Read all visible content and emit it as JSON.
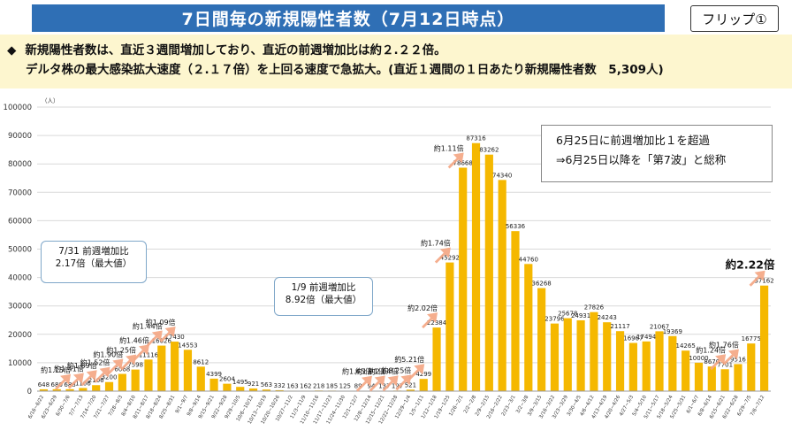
{
  "header": {
    "title": "7日間毎の新規陽性者数（7月12日時点）",
    "flip_label": "フリップ①"
  },
  "summary": {
    "bullet": "◆",
    "line1": "新規陽性者数は、直近３週間増加しており、直近の前週増加比は約２.２２倍。",
    "line2": "デルタ株の最大感染拡大速度（２.１７倍）を上回る速度で急拡大。(直近１週間の１日あたり新規陽性者数　5,309人)"
  },
  "callouts": {
    "delta": [
      "7/31 前週増加比",
      "2.17倍（最大値）"
    ],
    "omicron": [
      "1/9  前週増加比",
      "8.92倍（最大値）"
    ],
    "wave7": [
      "6月25日に前週増加比１を超過",
      "⇒6月25日以降を「第7波」と総称"
    ]
  },
  "colors": {
    "bar": "#f5b800",
    "arrow": "#f4a582",
    "title_bg": "#2f6fb5",
    "summary_bg": "#fdf6cf",
    "grid": "#d9d9d9"
  },
  "chart_data": {
    "type": "bar",
    "ylabel": "（人）",
    "ylim": [
      0,
      100000
    ],
    "yticks": [
      0,
      10000,
      20000,
      30000,
      40000,
      50000,
      60000,
      70000,
      80000,
      90000,
      100000
    ],
    "categories": [
      "6/16~6/22",
      "6/23~6/29",
      "6/30~7/6",
      "7/7~7/13",
      "7/14~7/20",
      "7/21~7/27",
      "7/28~8/3",
      "8/4~8/10",
      "8/11~8/17",
      "8/18~8/24",
      "8/25~8/31",
      "9/1~9/7",
      "9/8~9/14",
      "9/15~9/21",
      "9/22~9/28",
      "9/29~10/5",
      "10/6~10/12",
      "10/13~10/19",
      "10/20~10/26",
      "10/27~11/2",
      "11/3~11/9",
      "11/10~11/16",
      "11/17~11/23",
      "11/24~11/30",
      "12/1~12/7",
      "12/8~12/14",
      "12/15~12/21",
      "12/22~12/28",
      "12/29~1/4",
      "1/5~1/11",
      "1/12~1/18",
      "1/19~1/25",
      "1/26~2/1",
      "2/2~2/8",
      "2/9~2/15",
      "2/16~2/22",
      "2/23~3/1",
      "3/2~3/8",
      "3/9~3/15",
      "3/16~3/22",
      "3/23~3/29",
      "3/30~4/5",
      "4/6~4/12",
      "4/13~4/19",
      "4/20~4/26",
      "4/27~5/3",
      "5/4~5/10",
      "5/11~5/17",
      "5/18~5/24",
      "5/25~5/31",
      "6/1~6/7",
      "6/8~6/14",
      "6/15~6/21",
      "6/22~6/28",
      "6/29~7/5",
      "7/6~7/12"
    ],
    "values": [
      648,
      680,
      688,
      1106,
      2106,
      3200,
      6068,
      7598,
      11116,
      16026,
      17430,
      14553,
      8612,
      4399,
      2604,
      1495,
      921,
      563,
      332,
      163,
      162,
      218,
      185,
      125,
      89,
      94,
      137,
      197,
      521,
      4299,
      22384,
      45292,
      78668,
      87316,
      83262,
      74340,
      56336,
      44760,
      36268,
      23796,
      25678,
      24931,
      27826,
      24243,
      21117,
      16967,
      17494,
      21067,
      19369,
      14265,
      10000,
      8670,
      7701,
      9516,
      16775,
      37162
    ],
    "data_labels": [
      "648",
      "680",
      "688",
      "1106",
      "2106",
      "3200",
      "6068",
      "7598",
      "11116",
      "16026",
      "17430",
      "14553",
      "8612",
      "4399",
      "2604",
      "1495",
      "921",
      "563",
      "332",
      "163",
      "162",
      "218",
      "185",
      "125",
      "89",
      "94",
      "137",
      "197",
      "521",
      "4299",
      "22384",
      "45292",
      "78668",
      "87316",
      "83262",
      "74340",
      "56336",
      "44760",
      "36268",
      "23796",
      "25678",
      "24931",
      "27826",
      "24243",
      "21117",
      "16967",
      "17494",
      "21067",
      "19369",
      "14265",
      "10000",
      "8670",
      "7701",
      "9516",
      "16775",
      "37162"
    ],
    "growth_annotations": [
      {
        "label": "約1.15倍",
        "index": 2
      },
      {
        "label": "約1.41倍",
        "index": 3
      },
      {
        "label": "約1.89倍",
        "index": 4
      },
      {
        "label": "約1.52倍",
        "index": 5
      },
      {
        "label": "約1.90倍",
        "index": 6
      },
      {
        "label": "約1.25倍",
        "index": 7
      },
      {
        "label": "約1.46倍",
        "index": 8
      },
      {
        "label": "約1.44倍",
        "index": 9
      },
      {
        "label": "約1.09倍",
        "index": 10
      },
      {
        "label": "約1.45倍",
        "index": 25
      },
      {
        "label": "約1.91倍",
        "index": 26
      },
      {
        "label": "約2.64倍",
        "index": 27
      },
      {
        "label": "約8.25倍",
        "index": 28
      },
      {
        "label": "約5.21倍",
        "index": 29
      },
      {
        "label": "約2.02倍",
        "index": 30
      },
      {
        "label": "約1.74倍",
        "index": 31
      },
      {
        "label": "約1.11倍",
        "index": 32
      },
      {
        "label": "約1.24倍",
        "index": 52
      },
      {
        "label": "約1.76倍",
        "index": 53
      },
      {
        "label": "約2.22倍",
        "index": 55
      }
    ]
  }
}
